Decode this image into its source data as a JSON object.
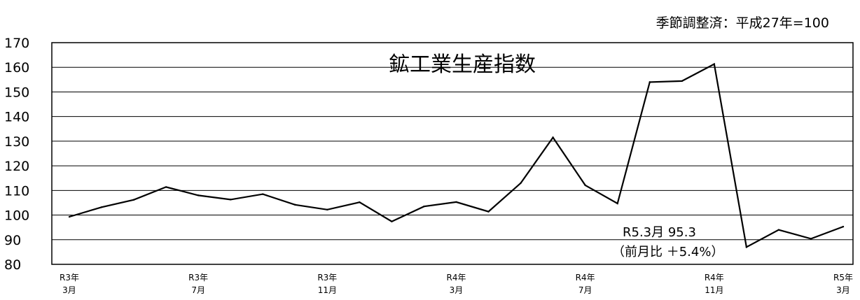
{
  "header_note": "季節調整済：平成27年=100",
  "chart_data": {
    "type": "line",
    "title": "鉱工業生産指数",
    "xlabel": "",
    "ylabel": "",
    "ylim": [
      80,
      170
    ],
    "yticks": [
      80,
      90,
      100,
      110,
      120,
      130,
      140,
      150,
      160,
      170
    ],
    "grid": true,
    "legend": "none",
    "line_color": "#000000",
    "x_tick_labels": [
      {
        "index": 0,
        "line1": "R3年",
        "line2": "3月"
      },
      {
        "index": 4,
        "line1": "R3年",
        "line2": "7月"
      },
      {
        "index": 8,
        "line1": "R3年",
        "line2": "11月"
      },
      {
        "index": 12,
        "line1": "R4年",
        "line2": "3月"
      },
      {
        "index": 16,
        "line1": "R4年",
        "line2": "7月"
      },
      {
        "index": 20,
        "line1": "R4年",
        "line2": "11月"
      },
      {
        "index": 24,
        "line1": "R5年",
        "line2": "3月"
      }
    ],
    "series": [
      {
        "values": [
          99.3,
          103.2,
          106.2,
          111.4,
          108.0,
          106.3,
          108.5,
          104.2,
          102.2,
          105.2,
          97.4,
          103.5,
          105.3,
          101.4,
          113.0,
          131.5,
          112.1,
          104.7,
          154.0,
          154.4,
          161.3,
          87.0,
          94.0,
          90.4,
          95.3
        ]
      }
    ],
    "annotation": {
      "line1": "R5.3月 95.3",
      "line2": "（前月比 ＋5.4%）"
    }
  }
}
